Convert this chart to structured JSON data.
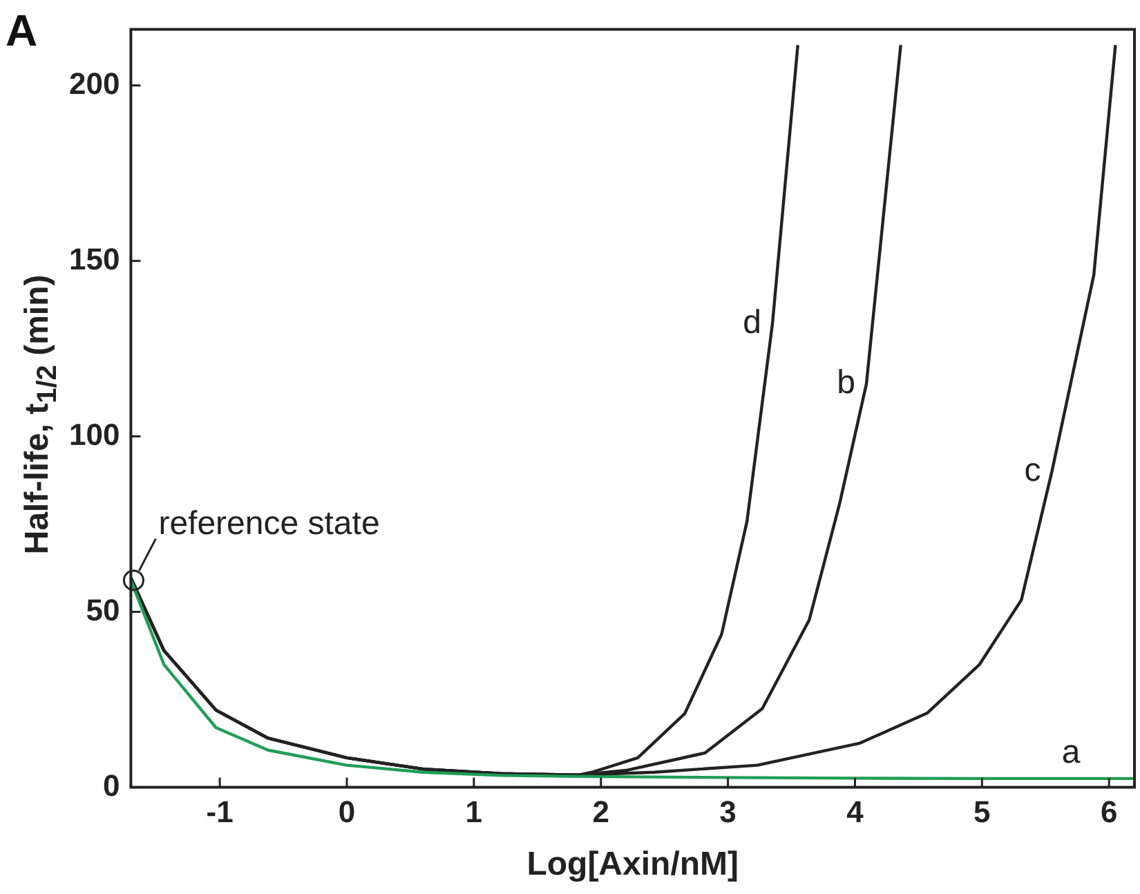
{
  "chart_data": {
    "type": "line",
    "title": "A",
    "xlabel": "Log[Axin/nM]",
    "ylabel": "Half-life, t$_{1/2}$ (min)",
    "xlim": [
      -1.7,
      6.2
    ],
    "ylim": [
      0,
      216
    ],
    "xticks": [
      -1,
      0,
      1,
      2,
      3,
      4,
      5,
      6
    ],
    "yticks": [
      0,
      50,
      100,
      150,
      200
    ],
    "grid": false,
    "legend": false,
    "marker": "none",
    "line_style": "solid",
    "series": [
      {
        "color": "#1f9e55",
        "x": [
          -1.7,
          -1.44,
          -1.03,
          -0.62,
          0,
          0.6,
          1.21,
          1.82,
          3,
          4,
          5,
          6.2
        ],
        "values": [
          59,
          35,
          17,
          10.6,
          6.3,
          4.3,
          3.4,
          3.1,
          2.8,
          2.6,
          2.5,
          2.5
        ]
      },
      {
        "color": "#222222",
        "x": [
          -1.7,
          -1.44,
          -1.03,
          -0.62,
          0,
          0.6,
          1.21,
          1.82,
          2.21,
          2.82,
          3.27,
          3.64,
          3.88,
          4.09,
          4.36
        ],
        "values": [
          59.7,
          39,
          22,
          14,
          8.4,
          5.2,
          3.9,
          3.5,
          4.9,
          9.8,
          22.4,
          47.7,
          81,
          115,
          211.5
        ]
      },
      {
        "color": "#222222",
        "x": [
          -1.7,
          -1.44,
          -1.03,
          -0.62,
          0,
          0.6,
          1.21,
          1.82,
          2.42,
          3.23,
          4.04,
          4.57,
          4.98,
          5.31,
          5.55,
          5.88,
          6.05
        ],
        "values": [
          59.7,
          39,
          22,
          14,
          8.4,
          5.2,
          3.9,
          3.5,
          4.3,
          6.3,
          12.6,
          21.2,
          35,
          53.4,
          90,
          146,
          211.5
        ]
      },
      {
        "color": "#222222",
        "x": [
          -1.7,
          -1.44,
          -1.03,
          -0.62,
          0,
          0.6,
          1.21,
          1.82,
          1.93,
          2.29,
          2.66,
          2.95,
          3.15,
          3.35,
          3.55
        ],
        "values": [
          59.7,
          39,
          22,
          14,
          8.4,
          5.2,
          3.9,
          3.5,
          4.3,
          8.4,
          21,
          43.6,
          75.8,
          132,
          211.5
        ]
      }
    ],
    "annotations": [
      {
        "text": "reference state",
        "x": -1.7,
        "y": 59
      },
      {
        "text": "a",
        "x": 5.7,
        "y": 2.5
      },
      {
        "text": "b",
        "x": 4.09,
        "y": 115
      },
      {
        "text": "c",
        "x": 5.55,
        "y": 90
      },
      {
        "text": "d",
        "x": 3.35,
        "y": 132
      }
    ]
  }
}
